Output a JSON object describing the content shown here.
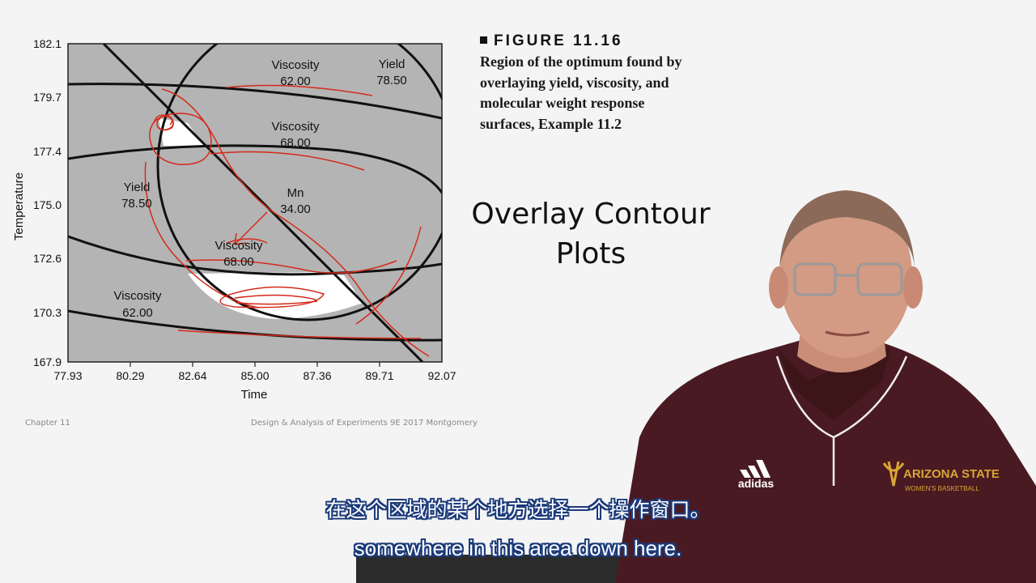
{
  "slide": {
    "figure_heading": "FIGURE 11.16",
    "figure_description": "Region of the optimum found by\noverlaying yield, viscosity, and\nmolecular weight response\nsurfaces, Example 11.2",
    "title": "Overlay Contour\nPlots",
    "footer_left": "Chapter 11",
    "footer_right": "Design & Analysis of Experiments 9E 2017 Montgomery"
  },
  "chart_data": {
    "type": "contour",
    "xlabel": "Time",
    "ylabel": "Temperature",
    "x_ticks": [
      "77.93",
      "80.29",
      "82.64",
      "85.00",
      "87.36",
      "89.71",
      "92.07"
    ],
    "y_ticks": [
      "182.1",
      "179.7",
      "177.4",
      "175.0",
      "172.6",
      "170.3",
      "167.9"
    ],
    "xlim": [
      77.93,
      92.07
    ],
    "ylim": [
      167.9,
      182.1
    ],
    "grid": false,
    "contour_labels": [
      {
        "name": "Viscosity",
        "value": "62.00"
      },
      {
        "name": "Yield",
        "value": "78.50"
      },
      {
        "name": "Viscosity",
        "value": "68.00"
      },
      {
        "name": "Yield",
        "value": "78.50"
      },
      {
        "name": "Mn",
        "value": "34.00"
      },
      {
        "name": "Viscosity",
        "value": "68.00"
      },
      {
        "name": "Viscosity",
        "value": "62.00"
      }
    ],
    "colors": {
      "plot_bg": "#b4b4b4",
      "feasible_region": "#ffffff",
      "annotation": "#d42a1a"
    }
  },
  "subtitles": {
    "zh": "在这个区域的某个地方选择一个操作窗口。",
    "en": "somewhere in this area down here."
  },
  "presenter": {
    "shirt_brand": "adidas",
    "shirt_text_line1": "ARIZONA STATE",
    "shirt_text_line2": "WOMEN'S BASKETBALL"
  }
}
